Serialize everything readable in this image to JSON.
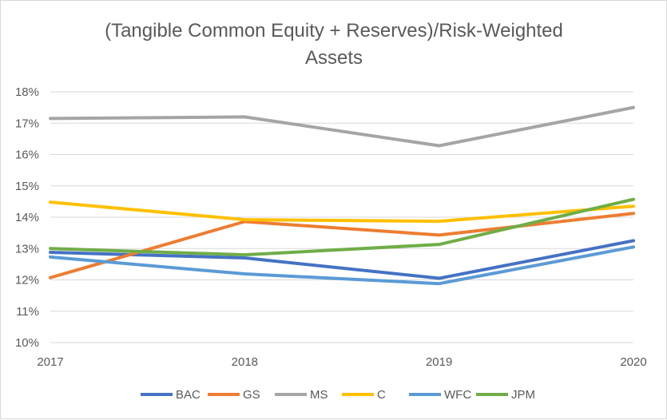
{
  "chart_data": {
    "type": "line",
    "title": "(Tangible Common Equity + Reserves)/Risk-Weighted Assets",
    "title_lines": [
      "(Tangible Common Equity + Reserves)/Risk-Weighted",
      "Assets"
    ],
    "xlabel": "",
    "ylabel": "",
    "categories": [
      "2017",
      "2018",
      "2019",
      "2020"
    ],
    "y_ticks": [
      "10%",
      "11%",
      "12%",
      "13%",
      "14%",
      "15%",
      "16%",
      "17%",
      "18%"
    ],
    "ylim": [
      0.1,
      0.18
    ],
    "grid": true,
    "legend_position": "bottom",
    "series": [
      {
        "name": "BAC",
        "color": "#4472C4",
        "values": [
          0.1288,
          0.127,
          0.1205,
          0.1325
        ]
      },
      {
        "name": "GS",
        "color": "#ED7D31",
        "values": [
          0.1207,
          0.1386,
          0.1343,
          0.1412
        ]
      },
      {
        "name": "MS",
        "color": "#A5A5A5",
        "values": [
          0.1715,
          0.172,
          0.1628,
          0.175
        ]
      },
      {
        "name": "C",
        "color": "#FFC000",
        "values": [
          0.1448,
          0.1392,
          0.1387,
          0.1435
        ]
      },
      {
        "name": "WFC",
        "color": "#5B9BD5",
        "values": [
          0.1273,
          0.1219,
          0.1188,
          0.1305
        ]
      },
      {
        "name": "JPM",
        "color": "#70AD47",
        "values": [
          0.13,
          0.128,
          0.1313,
          0.1457
        ]
      }
    ]
  }
}
